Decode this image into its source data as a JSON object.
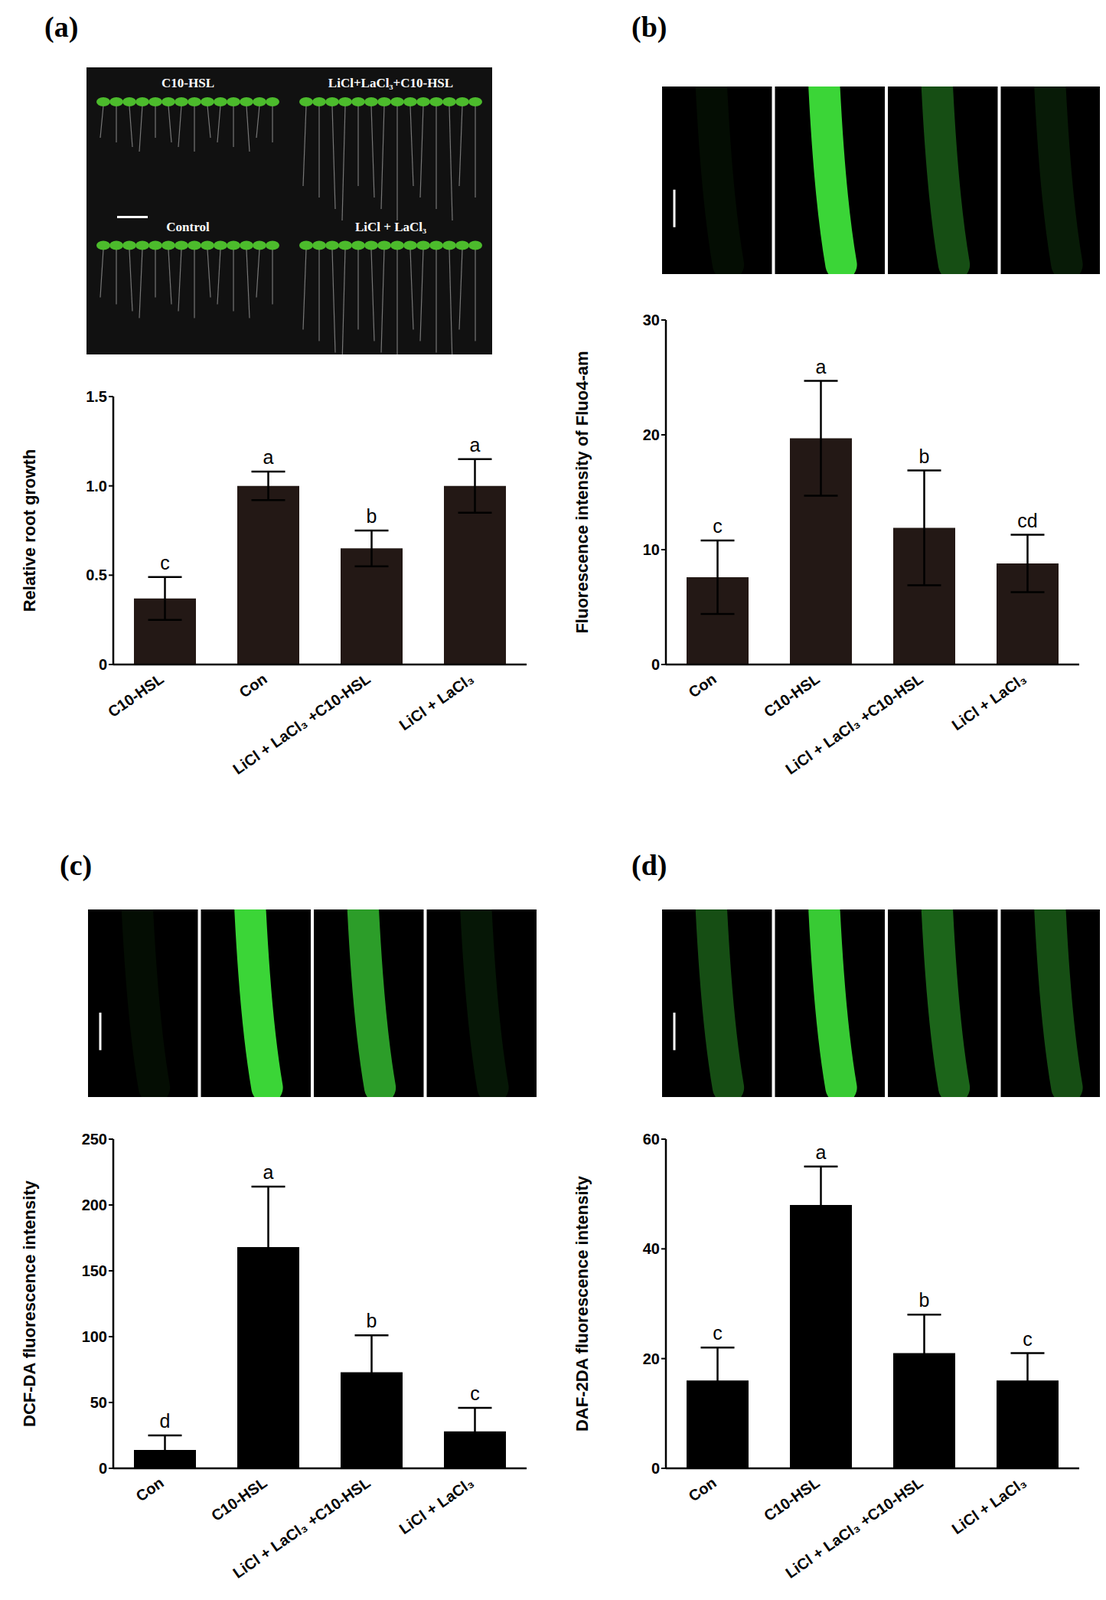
{
  "chart_data": [
    {
      "type": "bar",
      "title": "(a)",
      "image_labels": [
        "C10-HSL",
        "LiCl+LaCl₃+C10-HSL",
        "Control",
        "LiCl + LaCl₃"
      ],
      "categories": [
        "C10-HSL",
        "Con",
        "LiCl + LaCl₃ +C10-HSL",
        "LiCl + LaCl₃"
      ],
      "values": [
        0.37,
        1.0,
        0.65,
        1.0
      ],
      "errors": [
        0.12,
        0.08,
        0.1,
        0.15
      ],
      "significance": [
        "c",
        "a",
        "b",
        "a"
      ],
      "y_label": "Relative root growth",
      "color": "#231815",
      "ylim": [
        0,
        1.5
      ],
      "yticks": [
        0,
        0.5,
        {
          "value": 1,
          "label": "1.0"
        },
        1.5
      ]
    },
    {
      "type": "bar",
      "title": "(b)",
      "categories": [
        "Con",
        "C10-HSL",
        "LiCl + LaCl₃ +C10-HSL",
        "LiCl + LaCl₃"
      ],
      "values": [
        7.6,
        19.7,
        11.9,
        8.8
      ],
      "errors": [
        3.2,
        5.0,
        5.0,
        2.5
      ],
      "significance": [
        "c",
        "a",
        "b",
        "cd"
      ],
      "y_label": "Fluorescence intensity of Fluo4-am",
      "color": "#231815",
      "ylim": [
        0,
        30
      ],
      "yticks": [
        0,
        10,
        20,
        30
      ]
    },
    {
      "type": "bar",
      "title": "(c)",
      "categories": [
        "Con",
        "C10-HSL",
        "LiCl + LaCl₃ +C10-HSL",
        "LiCl + LaCl₃"
      ],
      "values": [
        14,
        168,
        73,
        28
      ],
      "errors": [
        11,
        46,
        28,
        18
      ],
      "significance": [
        "d",
        "a",
        "b",
        "c"
      ],
      "y_label": "DCF-DA fluorescence intensity",
      "color": "#000000",
      "ylim": [
        0,
        250
      ],
      "yticks": [
        0,
        50,
        100,
        150,
        200,
        250
      ]
    },
    {
      "type": "bar",
      "title": "(d)",
      "categories": [
        "Con",
        "C10-HSL",
        "LiCl + LaCl₃ +C10-HSL",
        "LiCl + LaCl₃"
      ],
      "values": [
        16,
        48,
        21,
        16
      ],
      "errors": [
        6,
        7,
        7,
        5
      ],
      "significance": [
        "c",
        "a",
        "b",
        "c"
      ],
      "y_label": "DAF-2DA fluorescence intensity",
      "color": "#000000",
      "ylim": [
        0,
        60
      ],
      "yticks": [
        0,
        20,
        40,
        60
      ]
    }
  ]
}
